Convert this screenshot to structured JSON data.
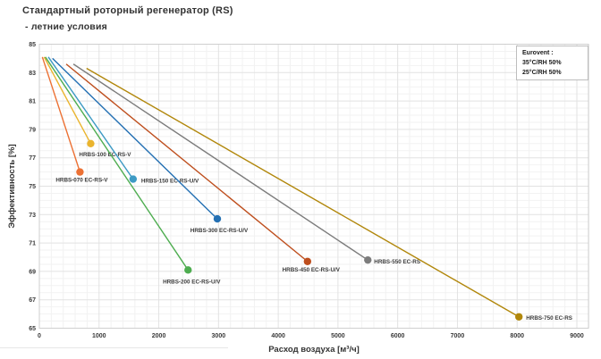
{
  "chart_data": {
    "type": "line",
    "title": "Стандартный роторный регенератор (RS)",
    "subtitle": "- летние условия",
    "xlabel": "Расход воздуха [м³/ч]",
    "ylabel": "Эффективность [%]",
    "xlim": [
      0,
      9000
    ],
    "ylim": [
      65,
      85
    ],
    "x_ticks": [
      0,
      1000,
      2000,
      3000,
      4000,
      5000,
      6000,
      7000,
      8000,
      9000
    ],
    "y_ticks": [
      65,
      67,
      69,
      71,
      73,
      75,
      77,
      79,
      81,
      83,
      85
    ],
    "x_minor_step": 200,
    "y_minor_step": 0.5,
    "grid": true,
    "annotation_box": {
      "position": "top-right",
      "title": "Eurovent :",
      "lines": [
        "35°C/RH 50%",
        "25°C/RH 50%"
      ]
    },
    "series": [
      {
        "name": "HRBS-070 EC-RS-V",
        "color": "#EC7134",
        "points": [
          [
            50,
            84.1
          ],
          [
            680,
            76.0
          ]
        ],
        "label_anchor": "middle",
        "label_dx": 2,
        "label_dy": 11
      },
      {
        "name": "HRBS-100 EC-RS-V",
        "color": "#EAB42E",
        "points": [
          [
            80,
            84.1
          ],
          [
            860,
            78.0
          ]
        ],
        "label_anchor": "start",
        "label_dx": -13,
        "label_dy": 14
      },
      {
        "name": "HRBS-150 EC-RS-U/V",
        "color": "#3D9AC4",
        "points": [
          [
            150,
            84.1
          ],
          [
            1570,
            75.5
          ]
        ],
        "label_anchor": "start",
        "label_dx": 9,
        "label_dy": 4
      },
      {
        "name": "HRBS-200 EC-RS-U/V",
        "color": "#4EAD50",
        "points": [
          [
            100,
            84.1
          ],
          [
            2490,
            69.1
          ]
        ],
        "label_anchor": "middle",
        "label_dx": 4,
        "label_dy": 15
      },
      {
        "name": "HRBS-300 EC-RS-U/V",
        "color": "#2470B3",
        "points": [
          [
            220,
            84.0
          ],
          [
            2980,
            72.7
          ]
        ],
        "label_anchor": "middle",
        "label_dx": 2,
        "label_dy": 15
      },
      {
        "name": "HRBS-450 EC-RS-U/V",
        "color": "#BE4E1D",
        "points": [
          [
            450,
            83.6
          ],
          [
            4490,
            69.7
          ]
        ],
        "label_anchor": "middle",
        "label_dx": 4,
        "label_dy": 11
      },
      {
        "name": "HRBS-550 EC-RS",
        "color": "#7C7C7C",
        "points": [
          [
            570,
            83.6
          ],
          [
            5500,
            69.8
          ]
        ],
        "label_anchor": "start",
        "label_dx": 7,
        "label_dy": 4
      },
      {
        "name": "HRBS-750 EC-RS",
        "color": "#B1870B",
        "points": [
          [
            790,
            83.3
          ],
          [
            8030,
            65.8
          ]
        ],
        "label_anchor": "start",
        "label_dx": 8,
        "label_dy": 3
      }
    ]
  }
}
